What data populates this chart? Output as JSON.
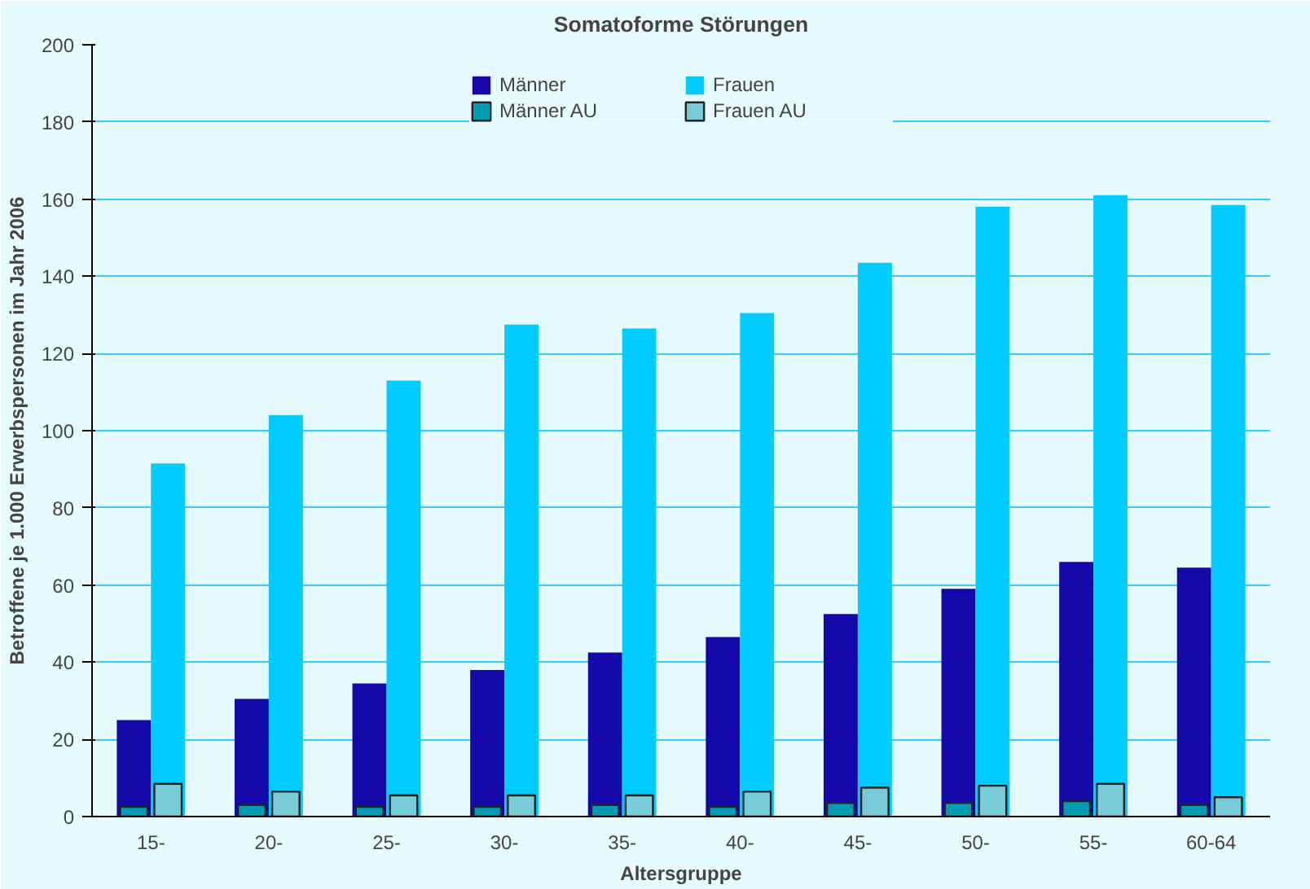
{
  "chart_data": {
    "type": "bar",
    "title": "Somatoforme Störungen",
    "xlabel": "Altersgruppe",
    "ylabel": "Betroffene je 1.000 Erwerbspersonen im Jahr 2006",
    "categories": [
      "15-",
      "20-",
      "25-",
      "30-",
      "35-",
      "40-",
      "45-",
      "50-",
      "55-",
      "60-64"
    ],
    "series": [
      {
        "name": "Männer",
        "color": "#1408a8",
        "values": [
          25,
          30.5,
          34.5,
          38,
          42.5,
          46.5,
          52.5,
          59,
          66,
          64.5
        ]
      },
      {
        "name": "Frauen",
        "color": "#00ccff",
        "values": [
          91.5,
          104,
          113,
          127.5,
          126.5,
          130.5,
          143.5,
          158,
          161,
          158.5
        ]
      },
      {
        "name": "Männer AU",
        "color": "#009cb4",
        "values": [
          2.5,
          3,
          2.5,
          2.5,
          3,
          2.5,
          3.5,
          3.5,
          4,
          3
        ]
      },
      {
        "name": "Frauen AU",
        "color": "#77ccd8",
        "values": [
          8.5,
          6.5,
          5.5,
          5.5,
          5.5,
          6.5,
          7.5,
          8,
          8.5,
          5
        ]
      }
    ],
    "ylim": [
      0,
      200
    ],
    "yticks": [
      0,
      20,
      40,
      60,
      80,
      100,
      120,
      140,
      160,
      180,
      200
    ],
    "grid": "y",
    "legend": "top"
  }
}
